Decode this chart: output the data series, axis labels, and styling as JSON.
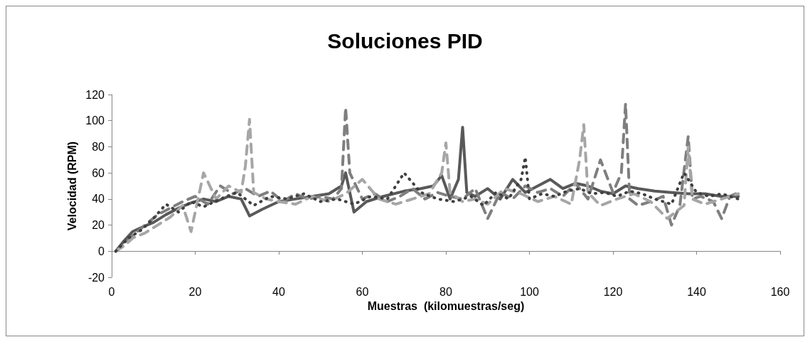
{
  "chart_data": {
    "type": "line",
    "title": "Soluciones PID",
    "xlabel": "Muestras  (kilomuestras/seg)",
    "ylabel": "Velocidad (RPM)",
    "xlim": [
      0,
      160
    ],
    "xticks": [
      0,
      20,
      40,
      60,
      80,
      100,
      120,
      140,
      160
    ],
    "ylim": [
      -20,
      120
    ],
    "yticks": [
      -20,
      0,
      20,
      40,
      60,
      80,
      100,
      120
    ],
    "marker": "none",
    "series": [
      {
        "color": "#595959",
        "line_style": "solid",
        "x": [
          1,
          3,
          5,
          7,
          10,
          13,
          16,
          19,
          22,
          25,
          28,
          31,
          33,
          36,
          40,
          44,
          48,
          52,
          55,
          56,
          58,
          61,
          65,
          70,
          74,
          77,
          79,
          81,
          83,
          84,
          85,
          87,
          90,
          93,
          96,
          99,
          102,
          105,
          108,
          111,
          114,
          117,
          120,
          123,
          126,
          130,
          134,
          138,
          142,
          146,
          150
        ],
        "values": [
          0,
          8,
          15,
          18,
          22,
          28,
          33,
          37,
          40,
          38,
          42,
          40,
          27,
          32,
          38,
          40,
          42,
          44,
          50,
          60,
          30,
          38,
          42,
          46,
          48,
          50,
          58,
          40,
          55,
          95,
          45,
          42,
          48,
          40,
          55,
          45,
          50,
          55,
          48,
          52,
          50,
          46,
          44,
          50,
          48,
          46,
          45,
          44,
          44,
          42,
          42
        ]
      },
      {
        "color": "#7f7f7f",
        "line_style": "dashed",
        "x": [
          1,
          3,
          5,
          8,
          11,
          14,
          17,
          20,
          23,
          26,
          29,
          32,
          35,
          38,
          41,
          44,
          47,
          50,
          53,
          55,
          56,
          57,
          60,
          63,
          66,
          69,
          72,
          75,
          78,
          81,
          84,
          87,
          90,
          93,
          96,
          99,
          102,
          105,
          108,
          111,
          114,
          117,
          120,
          122,
          123,
          124,
          126,
          129,
          132,
          134,
          136,
          138,
          139,
          141,
          144,
          146,
          148,
          150
        ],
        "values": [
          0,
          5,
          12,
          20,
          28,
          33,
          38,
          42,
          36,
          50,
          44,
          48,
          42,
          46,
          38,
          44,
          40,
          42,
          40,
          48,
          110,
          60,
          40,
          44,
          38,
          42,
          48,
          40,
          45,
          42,
          40,
          48,
          25,
          45,
          40,
          50,
          45,
          48,
          42,
          52,
          40,
          70,
          45,
          60,
          113,
          40,
          35,
          38,
          42,
          20,
          35,
          88,
          40,
          42,
          38,
          25,
          42,
          45
        ]
      },
      {
        "color": "#a6a6a6",
        "line_style": "dashed",
        "x": [
          1,
          3,
          5,
          8,
          11,
          14,
          17,
          19,
          22,
          25,
          28,
          31,
          32,
          33,
          34,
          37,
          40,
          44,
          48,
          52,
          56,
          60,
          64,
          68,
          72,
          76,
          79,
          80,
          81,
          84,
          87,
          90,
          94,
          98,
          102,
          106,
          110,
          112,
          113,
          114,
          117,
          121,
          125,
          129,
          133,
          137,
          138,
          139,
          142,
          146,
          150
        ],
        "values": [
          0,
          4,
          10,
          14,
          20,
          26,
          35,
          15,
          60,
          40,
          50,
          45,
          65,
          101,
          45,
          40,
          38,
          36,
          42,
          38,
          44,
          55,
          40,
          36,
          40,
          44,
          60,
          83,
          45,
          38,
          40,
          36,
          48,
          44,
          38,
          42,
          36,
          70,
          97,
          45,
          35,
          40,
          44,
          38,
          25,
          35,
          80,
          40,
          36,
          40,
          44
        ]
      },
      {
        "color": "#404040",
        "line_style": "dotted",
        "x": [
          1,
          4,
          7,
          10,
          13,
          16,
          19,
          22,
          26,
          30,
          34,
          38,
          42,
          46,
          50,
          54,
          58,
          62,
          66,
          70,
          74,
          78,
          82,
          86,
          89,
          92,
          95,
          98,
          99,
          100,
          103,
          106,
          109,
          112,
          115,
          118,
          121,
          124,
          127,
          130,
          134,
          137,
          140,
          143,
          146,
          150
        ],
        "values": [
          0,
          10,
          16,
          25,
          36,
          30,
          38,
          34,
          40,
          45,
          35,
          42,
          40,
          44,
          38,
          40,
          36,
          42,
          40,
          60,
          45,
          40,
          38,
          42,
          35,
          45,
          40,
          55,
          72,
          40,
          44,
          42,
          46,
          48,
          44,
          45,
          42,
          46,
          44,
          40,
          36,
          60,
          45,
          42,
          44,
          40
        ]
      }
    ]
  }
}
